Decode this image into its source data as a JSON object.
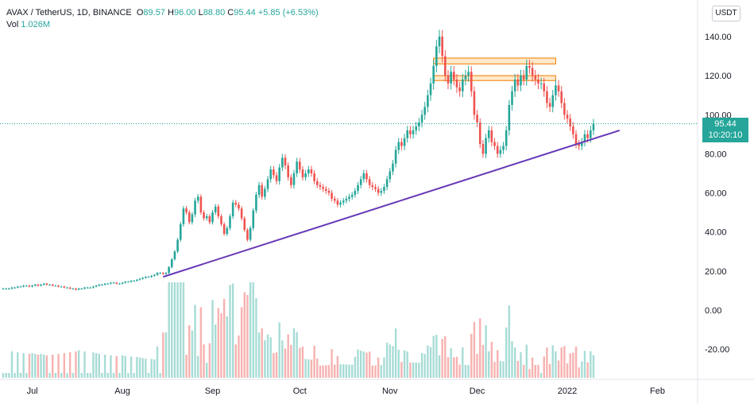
{
  "header": {
    "symbol": "AVAX / TetherUS, 1D, BINANCE",
    "open_label": "O",
    "open": "89.57",
    "high_label": "H",
    "high": "96.00",
    "low_label": "L",
    "low": "88.80",
    "close_label": "C",
    "close": "95.44",
    "change": "+5.85 (+6.53%)",
    "vol_label": "Vol",
    "vol": "1.026M"
  },
  "currency_button": "USDT",
  "price_tag": {
    "price": "95.44",
    "countdown": "10:20:10"
  },
  "colors": {
    "up": "#26a69a",
    "down": "#ef5350",
    "up_vol": "#a7dcd6",
    "down_vol": "#f7b2b0",
    "trendline": "#673ab7",
    "zone_fill": "#ffe0b2",
    "zone_border": "#f57c00"
  },
  "chart_data": {
    "type": "candlestick",
    "y_ticks": [
      "140.00",
      "120.00",
      "100.00",
      "80.00",
      "60.00",
      "40.00",
      "20.00",
      "0.00",
      "-20.00"
    ],
    "y_tick_values": [
      140,
      120,
      100,
      80,
      60,
      40,
      20,
      0,
      -20
    ],
    "x_ticks": [
      {
        "label": "Jul",
        "day": 10
      },
      {
        "label": "Aug",
        "day": 41
      },
      {
        "label": "Sep",
        "day": 72
      },
      {
        "label": "Oct",
        "day": 102
      },
      {
        "label": "Nov",
        "day": 133
      },
      {
        "label": "Dec",
        "day": 163
      },
      {
        "label": "2022",
        "day": 194
      },
      {
        "label": "Feb",
        "day": 225
      }
    ],
    "ylim": [
      -35,
      150
    ],
    "xlim": [
      0,
      240
    ],
    "trendline": {
      "from": [
        55,
        17
      ],
      "to": [
        212,
        92
      ]
    },
    "resistance_zones": [
      {
        "x0": 148,
        "x1": 190,
        "y0": 126,
        "y1": 129
      },
      {
        "x0": 148,
        "x1": 190,
        "y0": 117.5,
        "y1": 120
      }
    ],
    "last_price": 95.44,
    "close_series": [
      11,
      11,
      11,
      11.5,
      11.5,
      12,
      12,
      12.5,
      12.5,
      12,
      12.5,
      13,
      12.5,
      13,
      13.5,
      13,
      13,
      12.5,
      12.5,
      12,
      12,
      11.5,
      11.5,
      11,
      11,
      10.5,
      11,
      11,
      11.5,
      11.5,
      11.5,
      12,
      12.5,
      13,
      13,
      13.5,
      13.5,
      14,
      14,
      13.5,
      13.5,
      14,
      14.5,
      14.5,
      15,
      15,
      15.5,
      16,
      16.5,
      17,
      17,
      17.5,
      18,
      19,
      19,
      18.5,
      19,
      22,
      26,
      30,
      36,
      44,
      52,
      50,
      45,
      49,
      56,
      58,
      50,
      47,
      48,
      45,
      50,
      53,
      48,
      44,
      39,
      42,
      48,
      55,
      54,
      52,
      47,
      41,
      36,
      42,
      51,
      59,
      64,
      58,
      62,
      67,
      72,
      69,
      66,
      73,
      78,
      74,
      68,
      64,
      70,
      76,
      72,
      68,
      70,
      72,
      70,
      66,
      64,
      63,
      62,
      61,
      60,
      57,
      56,
      54,
      55,
      56,
      57,
      58,
      59,
      61,
      64,
      67,
      70,
      67,
      64,
      63,
      62,
      60,
      61,
      63,
      67,
      71,
      75,
      82,
      86,
      84,
      88,
      92,
      90,
      92,
      94,
      96,
      100,
      104,
      110,
      116,
      125,
      135,
      140,
      130,
      120,
      116,
      122,
      118,
      114,
      112,
      118,
      120,
      122,
      112,
      100,
      96,
      85,
      80,
      88,
      92,
      86,
      84,
      80,
      82,
      84,
      92,
      105,
      112,
      118,
      115,
      120,
      118,
      125,
      124,
      120,
      118,
      116,
      116,
      112,
      106,
      104,
      110,
      115,
      112,
      106,
      100,
      98,
      94,
      90,
      85,
      84,
      86,
      90,
      88,
      92,
      95.44
    ],
    "volume_note": "volume histogram plotted in lower pane"
  }
}
